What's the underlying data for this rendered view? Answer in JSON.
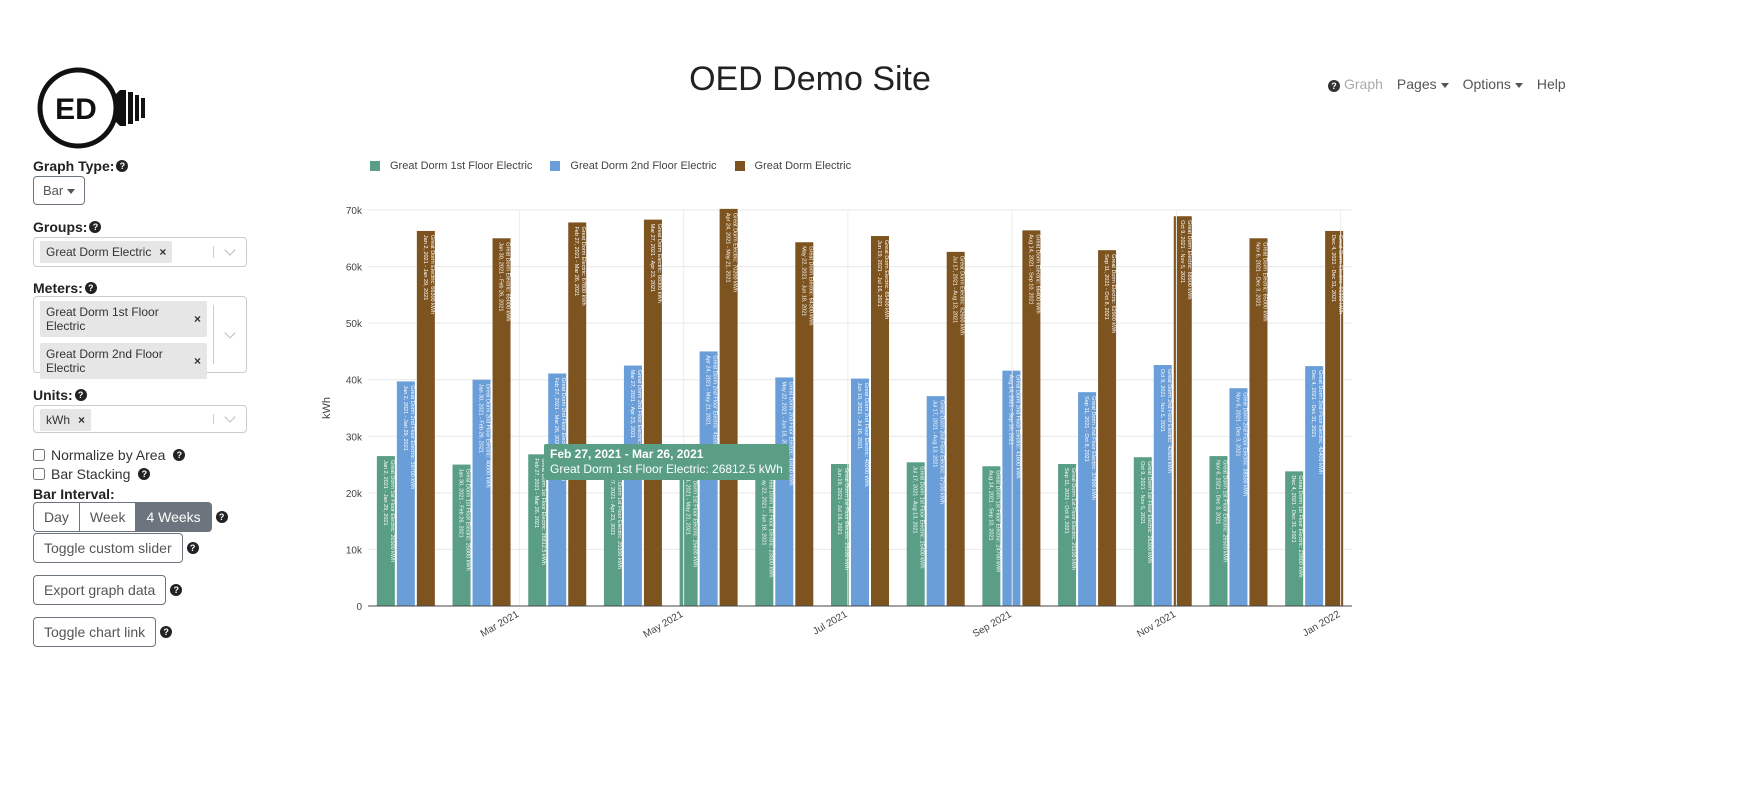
{
  "header": {
    "title": "OED Demo Site",
    "logo_text": "ED"
  },
  "nav": {
    "graph": "Graph",
    "pages": "Pages",
    "options": "Options",
    "help": "Help"
  },
  "sidebar": {
    "graph_type_label": "Graph Type:",
    "graph_type_value": "Bar",
    "groups_label": "Groups:",
    "groups": [
      "Great Dorm Electric"
    ],
    "meters_label": "Meters:",
    "meters": [
      "Great Dorm 1st Floor Electric",
      "Great Dorm 2nd Floor Electric"
    ],
    "units_label": "Units:",
    "units": [
      "kWh"
    ],
    "normalize_label": "Normalize by Area",
    "stacking_label": "Bar Stacking",
    "bar_interval_label": "Bar Interval:",
    "intervals": [
      "Day",
      "Week",
      "4 Weeks"
    ],
    "active_interval": "4 Weeks",
    "toggle_slider": "Toggle custom slider",
    "export": "Export graph data",
    "toggle_link": "Toggle chart link",
    "remove_symbol": "×"
  },
  "tooltip": {
    "line1": "Feb 27, 2021 - Mar 26, 2021",
    "line2": "Great Dorm 1st Floor Electric: 26812.5 kWh"
  },
  "colors": {
    "s1": "#5a9e86",
    "s2": "#6a9ed9",
    "s3": "#7d5420"
  },
  "chart_data": {
    "type": "bar",
    "ylabel": "kWh",
    "ylim": [
      0,
      70000
    ],
    "yticks": [
      "0",
      "10k",
      "20k",
      "30k",
      "40k",
      "50k",
      "60k",
      "70k"
    ],
    "xticks": [
      "Mar 2021",
      "May 2021",
      "Jul 2021",
      "Sep 2021",
      "Nov 2021",
      "Jan 2022"
    ],
    "categories": [
      "Jan 2, 2021 - Jan 29, 2021",
      "Jan 30, 2021 - Feb 26, 2021",
      "Feb 27, 2021 - Mar 26, 2021",
      "Mar 27, 2021 - Apr 23, 2021",
      "Apr 24, 2021 - May 21, 2021",
      "May 22, 2021 - Jun 18, 2021",
      "Jun 19, 2021 - Jul 16, 2021",
      "Jul 17, 2021 - Aug 13, 2021",
      "Aug 14, 2021 - Sep 10, 2021",
      "Sep 11, 2021 - Oct 8, 2021",
      "Oct 9, 2021 - Nov 5, 2021",
      "Nov 6, 2021 - Dec 3, 2021",
      "Dec 4, 2021 - Dec 31, 2021"
    ],
    "series": [
      {
        "name": "Great Dorm 1st Floor Electric",
        "values": [
          26500,
          25000,
          26812.5,
          25300,
          25600,
          23800,
          25100,
          25400,
          24700,
          25100,
          26300,
          26500,
          23800
        ]
      },
      {
        "name": "Great Dorm 2nd Floor Electric",
        "values": [
          39700,
          40000,
          41100,
          42500,
          45000,
          40400,
          40200,
          37100,
          41600,
          37800,
          42600,
          38500,
          42400
        ]
      },
      {
        "name": "Great Dorm Electric",
        "values": [
          66300,
          65000,
          67800,
          68300,
          70200,
          64300,
          65400,
          62600,
          66400,
          62900,
          68900,
          65000,
          66300
        ]
      }
    ]
  }
}
